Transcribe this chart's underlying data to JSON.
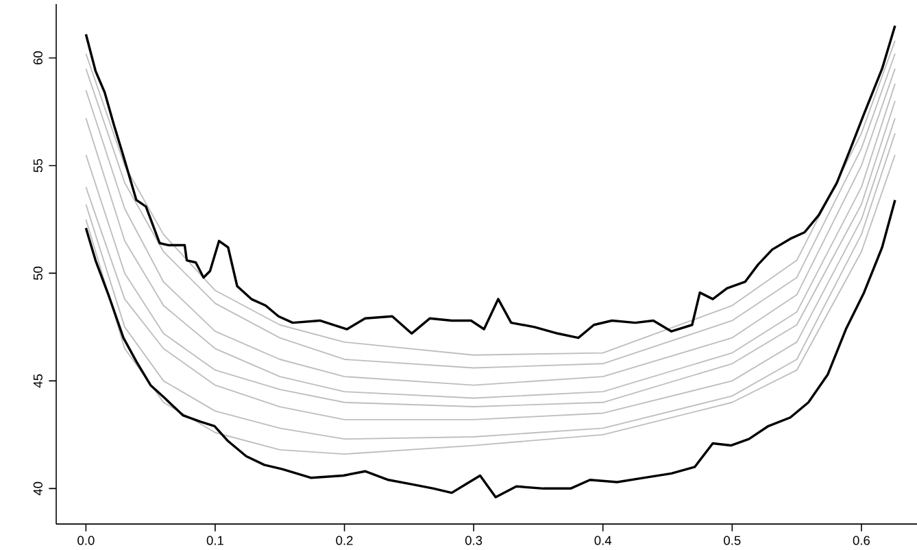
{
  "chart_data": {
    "type": "line",
    "xlim": [
      -0.023,
      0.643
    ],
    "ylim": [
      38.35,
      62.5
    ],
    "xticks": [
      {
        "value": 0,
        "label": "0.0"
      },
      0.1,
      0.2,
      0.3,
      0.4,
      0.5,
      0.6
    ],
    "yticks": [
      40,
      45,
      50,
      55,
      60
    ],
    "marker": "none",
    "line_style": "solid",
    "x": [
      0,
      0.03,
      0.06,
      0.1,
      0.15,
      0.2,
      0.3,
      0.4,
      0.5,
      0.55,
      0.6,
      0.626
    ],
    "series": [
      {
        "color": "#bebebe",
        "values": [
          60.2,
          55.0,
          51.8,
          49.2,
          47.6,
          46.8,
          46.2,
          46.3,
          48.5,
          50.6,
          56.5,
          60.8
        ]
      },
      {
        "color": "#bebebe",
        "values": [
          59.5,
          54.2,
          51.0,
          48.6,
          47.0,
          46.0,
          45.6,
          45.8,
          47.8,
          49.8,
          55.8,
          60.2
        ]
      },
      {
        "color": "#bebebe",
        "values": [
          58.5,
          53.0,
          49.6,
          47.3,
          46.0,
          45.2,
          44.8,
          45.2,
          47.0,
          49.0,
          55.0,
          59.5
        ]
      },
      {
        "color": "#bebebe",
        "values": [
          57.2,
          51.5,
          48.5,
          46.5,
          45.2,
          44.5,
          44.2,
          44.5,
          46.3,
          48.2,
          54.0,
          58.8
        ]
      },
      {
        "color": "#bebebe",
        "values": [
          55.5,
          50.0,
          47.2,
          45.5,
          44.6,
          44.0,
          43.8,
          44.0,
          45.8,
          47.6,
          53.2,
          58.0
        ]
      },
      {
        "color": "#bebebe",
        "values": [
          54.0,
          48.8,
          46.5,
          44.8,
          43.8,
          43.2,
          43.2,
          43.5,
          45.0,
          46.8,
          52.5,
          57.2
        ]
      },
      {
        "color": "#bebebe",
        "values": [
          53.2,
          47.5,
          45.0,
          43.6,
          42.8,
          42.3,
          42.4,
          42.8,
          44.3,
          46.0,
          51.8,
          56.5
        ]
      },
      {
        "color": "#bebebe",
        "values": [
          52.5,
          46.5,
          44.0,
          42.6,
          41.8,
          41.6,
          42.0,
          42.5,
          44.0,
          45.5,
          51.0,
          55.5
        ]
      },
      {
        "color": "#000000",
        "x": [
          0,
          0.0074,
          0.0145,
          0.0216,
          0.0287,
          0.039,
          0.0464,
          0.057,
          0.064,
          0.0764,
          0.078,
          0.085,
          0.091,
          0.096,
          0.103,
          0.11,
          0.117,
          0.128,
          0.139,
          0.149,
          0.16,
          0.181,
          0.202,
          0.216,
          0.237,
          0.252,
          0.266,
          0.283,
          0.298,
          0.308,
          0.319,
          0.329,
          0.347,
          0.365,
          0.381,
          0.393,
          0.407,
          0.425,
          0.439,
          0.453,
          0.469,
          0.475,
          0.485,
          0.496,
          0.51,
          0.52,
          0.531,
          0.545,
          0.556,
          0.567,
          0.581,
          0.591,
          0.602,
          0.616,
          0.626
        ],
        "values": [
          61.1,
          59.4,
          58.4,
          56.9,
          55.5,
          53.4,
          53.1,
          51.4,
          51.3,
          51.3,
          50.6,
          50.5,
          49.8,
          50.1,
          51.5,
          51.2,
          49.4,
          48.8,
          48.5,
          48.0,
          47.7,
          47.8,
          47.4,
          47.9,
          48.0,
          47.2,
          47.9,
          47.8,
          47.8,
          47.4,
          48.8,
          47.7,
          47.5,
          47.2,
          47.0,
          47.6,
          47.8,
          47.7,
          47.8,
          47.3,
          47.6,
          49.1,
          48.8,
          49.3,
          49.6,
          50.4,
          51.1,
          51.6,
          51.9,
          52.7,
          54.2,
          55.7,
          57.4,
          59.5,
          61.5
        ]
      },
      {
        "color": "#000000",
        "x": [
          0,
          0.0074,
          0.018,
          0.029,
          0.039,
          0.05,
          0.061,
          0.075,
          0.089,
          0.0995,
          0.11,
          0.124,
          0.138,
          0.152,
          0.174,
          0.199,
          0.216,
          0.234,
          0.252,
          0.269,
          0.283,
          0.294,
          0.305,
          0.317,
          0.333,
          0.354,
          0.375,
          0.39,
          0.411,
          0.432,
          0.453,
          0.471,
          0.485,
          0.499,
          0.513,
          0.528,
          0.545,
          0.559,
          0.574,
          0.588,
          0.602,
          0.616,
          0.626
        ],
        "values": [
          52.1,
          50.6,
          48.9,
          47.0,
          45.9,
          44.8,
          44.2,
          43.4,
          43.1,
          42.9,
          42.2,
          41.5,
          41.1,
          40.9,
          40.5,
          40.6,
          40.8,
          40.4,
          40.2,
          40.0,
          39.8,
          40.2,
          40.6,
          39.6,
          40.1,
          40.0,
          40.0,
          40.4,
          40.3,
          40.5,
          40.7,
          41.0,
          42.1,
          42.0,
          42.3,
          42.9,
          43.3,
          44.0,
          45.3,
          47.4,
          49.1,
          51.2,
          53.4
        ]
      }
    ]
  }
}
